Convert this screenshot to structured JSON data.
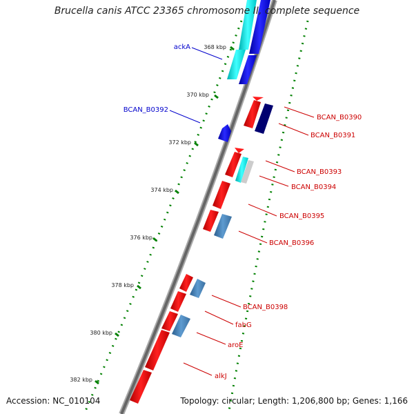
{
  "title": "Brucella canis ATCC 23365 chromosome II, complete sequence",
  "footer": {
    "accession": "Accession: NC_010104",
    "summary": "Topology: circular; Length: 1,206,800 bp; Genes: 1,166"
  },
  "ticks": [
    "368 kbp",
    "370 kbp",
    "372 kbp",
    "374 kbp",
    "376 kbp",
    "378 kbp",
    "380 kbp",
    "382 kbp"
  ],
  "gene_labels": {
    "left": [
      "ackA",
      "BCAN_B0392"
    ],
    "right": [
      "BCAN_B0390",
      "BCAN_B0391",
      "BCAN_B0393",
      "BCAN_B0394",
      "BCAN_B0395",
      "BCAN_B0396",
      "BCAN_B0398",
      "fabG",
      "aroE",
      "alkJ"
    ]
  },
  "colors": {
    "label_left": "#0000cc",
    "label_right": "#cc0000",
    "red_gene": "#ff1a1a",
    "blue_gene": "#1a1aff",
    "navy_gene": "#000070",
    "cyan_gene": "#00e6e6",
    "steel_gene": "#4a86bb",
    "gray_gene": "#c8c8c8",
    "backbone": "#808080",
    "dots": "#008000"
  }
}
